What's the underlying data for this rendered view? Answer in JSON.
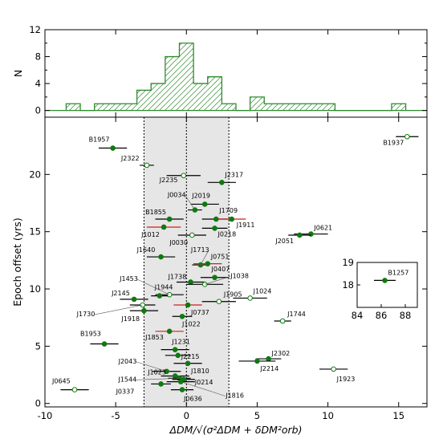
{
  "chart_data": [
    {
      "type": "histogram",
      "ylabel": "N",
      "xlim": [
        -10,
        17
      ],
      "ylim": [
        -1,
        12
      ],
      "yticks": [
        0,
        4,
        8,
        12
      ],
      "yticks_minor": [
        2,
        6,
        10
      ],
      "bin_width": 1,
      "bins": [
        {
          "x0": -8.5,
          "count": 1
        },
        {
          "x0": -6.5,
          "count": 1
        },
        {
          "x0": -5.5,
          "count": 1
        },
        {
          "x0": -4.5,
          "count": 1
        },
        {
          "x0": -3.5,
          "count": 3
        },
        {
          "x0": -2.5,
          "count": 4
        },
        {
          "x0": -1.5,
          "count": 8
        },
        {
          "x0": -0.5,
          "count": 10
        },
        {
          "x0": 0.5,
          "count": 4
        },
        {
          "x0": 1.5,
          "count": 5
        },
        {
          "x0": 2.5,
          "count": 1
        },
        {
          "x0": 4.5,
          "count": 2
        },
        {
          "x0": 5.5,
          "count": 1
        },
        {
          "x0": 6.5,
          "count": 1
        },
        {
          "x0": 7.5,
          "count": 1
        },
        {
          "x0": 8.5,
          "count": 1
        },
        {
          "x0": 9.5,
          "count": 1
        },
        {
          "x0": 14.5,
          "count": 1
        }
      ],
      "colors": {
        "bars": "#2e8b2e"
      },
      "hatch": "diagonal"
    },
    {
      "type": "scatter",
      "xlabel": "ΔDM/√(σ²ΔDM + δDM²orb)",
      "ylabel": "Epoch offset (yrs)",
      "xlim": [
        -10,
        17
      ],
      "ylim": [
        -0.3,
        25
      ],
      "xticks": [
        -10,
        -5,
        0,
        5,
        10,
        15
      ],
      "yticks": [
        0,
        5,
        10,
        15,
        20
      ],
      "shaded_band": [
        -3,
        3
      ],
      "vlines": [
        -3,
        0,
        3
      ],
      "colors": {
        "filled": "#0f7a0f",
        "hollow": "#ffffff",
        "errorbar": "#000000",
        "red_errorbar": "#cc2020",
        "band": "#e6e6e6"
      },
      "points": [
        {
          "label": "B1957",
          "x": -5.2,
          "y": 22.3,
          "xerr": 1.0,
          "filled": true
        },
        {
          "label": "B1937",
          "x": 15.6,
          "y": 23.3,
          "xerr": 0.8,
          "filled": false
        },
        {
          "label": "J2322",
          "x": -2.8,
          "y": 20.8,
          "xerr": 0.5,
          "filled": false
        },
        {
          "label": "J2235",
          "x": -0.2,
          "y": 19.9,
          "xerr": 1.2,
          "filled": false
        },
        {
          "label": "J2317",
          "x": 2.5,
          "y": 19.3,
          "xerr": 1.0,
          "filled": true
        },
        {
          "label": "J2019",
          "x": 1.3,
          "y": 17.4,
          "xerr": 1.0,
          "filled": true
        },
        {
          "label": "J0034",
          "x": 0.6,
          "y": 16.9,
          "xerr": 0.5,
          "filled": true
        },
        {
          "label": "J1709",
          "x": 2.1,
          "y": 16.1,
          "xerr": 1.0,
          "filled": true
        },
        {
          "label": "B1855",
          "x": -1.2,
          "y": 16.1,
          "xerr": 1.0,
          "filled": true
        },
        {
          "label": "J1911",
          "x": 3.2,
          "y": 16.1,
          "xerr": 1.0,
          "filled": true,
          "red": true
        },
        {
          "label": "J1012",
          "x": -1.6,
          "y": 15.4,
          "xerr": 1.2,
          "filled": true,
          "red": true
        },
        {
          "label": "J0218",
          "x": 2.0,
          "y": 15.3,
          "xerr": 0.9,
          "filled": true
        },
        {
          "label": "J0621",
          "x": 8.8,
          "y": 14.8,
          "xerr": 1.2,
          "filled": true
        },
        {
          "label": "J2051",
          "x": 8.0,
          "y": 14.7,
          "xerr": 0.8,
          "filled": true
        },
        {
          "label": "J0030",
          "x": 0.4,
          "y": 14.7,
          "xerr": 1.0,
          "filled": false
        },
        {
          "label": "J1640",
          "x": -1.8,
          "y": 12.8,
          "xerr": 1.0,
          "filled": true
        },
        {
          "label": "J1713",
          "x": 1.0,
          "y": 12.1,
          "xerr": 0.6,
          "filled": true
        },
        {
          "label": "J0751",
          "x": 1.5,
          "y": 12.2,
          "xerr": 1.0,
          "filled": true,
          "red": true
        },
        {
          "label": "J0407",
          "x": 2.0,
          "y": 11.0,
          "xerr": 1.0,
          "filled": true
        },
        {
          "label": "J1738",
          "x": 0.3,
          "y": 10.6,
          "xerr": 1.0,
          "filled": true
        },
        {
          "label": "J1038",
          "x": 1.3,
          "y": 10.4,
          "xerr": 1.3,
          "filled": false
        },
        {
          "label": "J1453",
          "x": -1.2,
          "y": 9.5,
          "xerr": 1.0,
          "filled": false
        },
        {
          "label": "J1944",
          "x": -1.9,
          "y": 9.4,
          "xerr": 0.6,
          "filled": true
        },
        {
          "label": "J1024",
          "x": 4.5,
          "y": 9.2,
          "xerr": 1.2,
          "filled": false
        },
        {
          "label": "J1905",
          "x": 2.3,
          "y": 8.9,
          "xerr": 1.2,
          "filled": false
        },
        {
          "label": "J2145",
          "x": -3.7,
          "y": 9.1,
          "xerr": 1.0,
          "filled": true
        },
        {
          "label": "J1730",
          "x": -3.1,
          "y": 8.6,
          "xerr": 0.9,
          "filled": false
        },
        {
          "label": "J0737",
          "x": 0.1,
          "y": 8.6,
          "xerr": 1.0,
          "filled": true,
          "red": true
        },
        {
          "label": "J1918",
          "x": -3.0,
          "y": 8.1,
          "xerr": 1.0,
          "filled": true
        },
        {
          "label": "J1744",
          "x": 6.8,
          "y": 7.2,
          "xerr": 0.6,
          "filled": false
        },
        {
          "label": "J1022",
          "x": -0.3,
          "y": 7.6,
          "xerr": 0.7,
          "filled": true
        },
        {
          "label": "J1853",
          "x": -1.2,
          "y": 6.3,
          "xerr": 1.0,
          "filled": true,
          "red": true
        },
        {
          "label": "B1953",
          "x": -5.8,
          "y": 5.2,
          "xerr": 1.0,
          "filled": true
        },
        {
          "label": "J1231",
          "x": -0.8,
          "y": 4.7,
          "xerr": 1.0,
          "filled": true
        },
        {
          "label": "J2215",
          "x": -0.6,
          "y": 4.2,
          "xerr": 0.9,
          "filled": true
        },
        {
          "label": "J2302",
          "x": 5.8,
          "y": 3.9,
          "xerr": 0.9,
          "filled": true
        },
        {
          "label": "J2214",
          "x": 5.0,
          "y": 3.7,
          "xerr": 1.3,
          "filled": true
        },
        {
          "label": "J1923",
          "x": 10.4,
          "y": 3.0,
          "xerr": 1.0,
          "filled": false
        },
        {
          "label": "J1810",
          "x": 0.1,
          "y": 3.5,
          "xerr": 1.0,
          "filled": true
        },
        {
          "label": "J2043",
          "x": -1.4,
          "y": 2.8,
          "xerr": 1.0,
          "filled": true
        },
        {
          "label": "J1023",
          "x": -0.8,
          "y": 2.4,
          "xerr": 1.0,
          "filled": true
        },
        {
          "label": "J1544",
          "x": -0.5,
          "y": 2.2,
          "xerr": 0.8,
          "filled": true
        },
        {
          "label": "J0214",
          "x": -0.2,
          "y": 2.1,
          "xerr": 0.8,
          "filled": true
        },
        {
          "label": "J1816",
          "x": -0.4,
          "y": 1.9,
          "xerr": 1.0,
          "filled": true
        },
        {
          "label": "J0337",
          "x": -1.8,
          "y": 1.7,
          "xerr": 0.7,
          "filled": true
        },
        {
          "label": "J0645",
          "x": -7.9,
          "y": 1.2,
          "xerr": 1.0,
          "filled": false
        },
        {
          "label": "J0636",
          "x": -0.3,
          "y": 1.2,
          "xerr": 0.8,
          "filled": true
        }
      ],
      "inset": {
        "xlim": [
          84,
          89
        ],
        "ylim": [
          17,
          19
        ],
        "xticks": [
          84,
          86,
          88
        ],
        "yticks": [
          18,
          19
        ],
        "points": [
          {
            "label": "B1257",
            "x": 86.3,
            "y": 18.2,
            "xerr": 0.9,
            "filled": true
          }
        ]
      }
    }
  ]
}
